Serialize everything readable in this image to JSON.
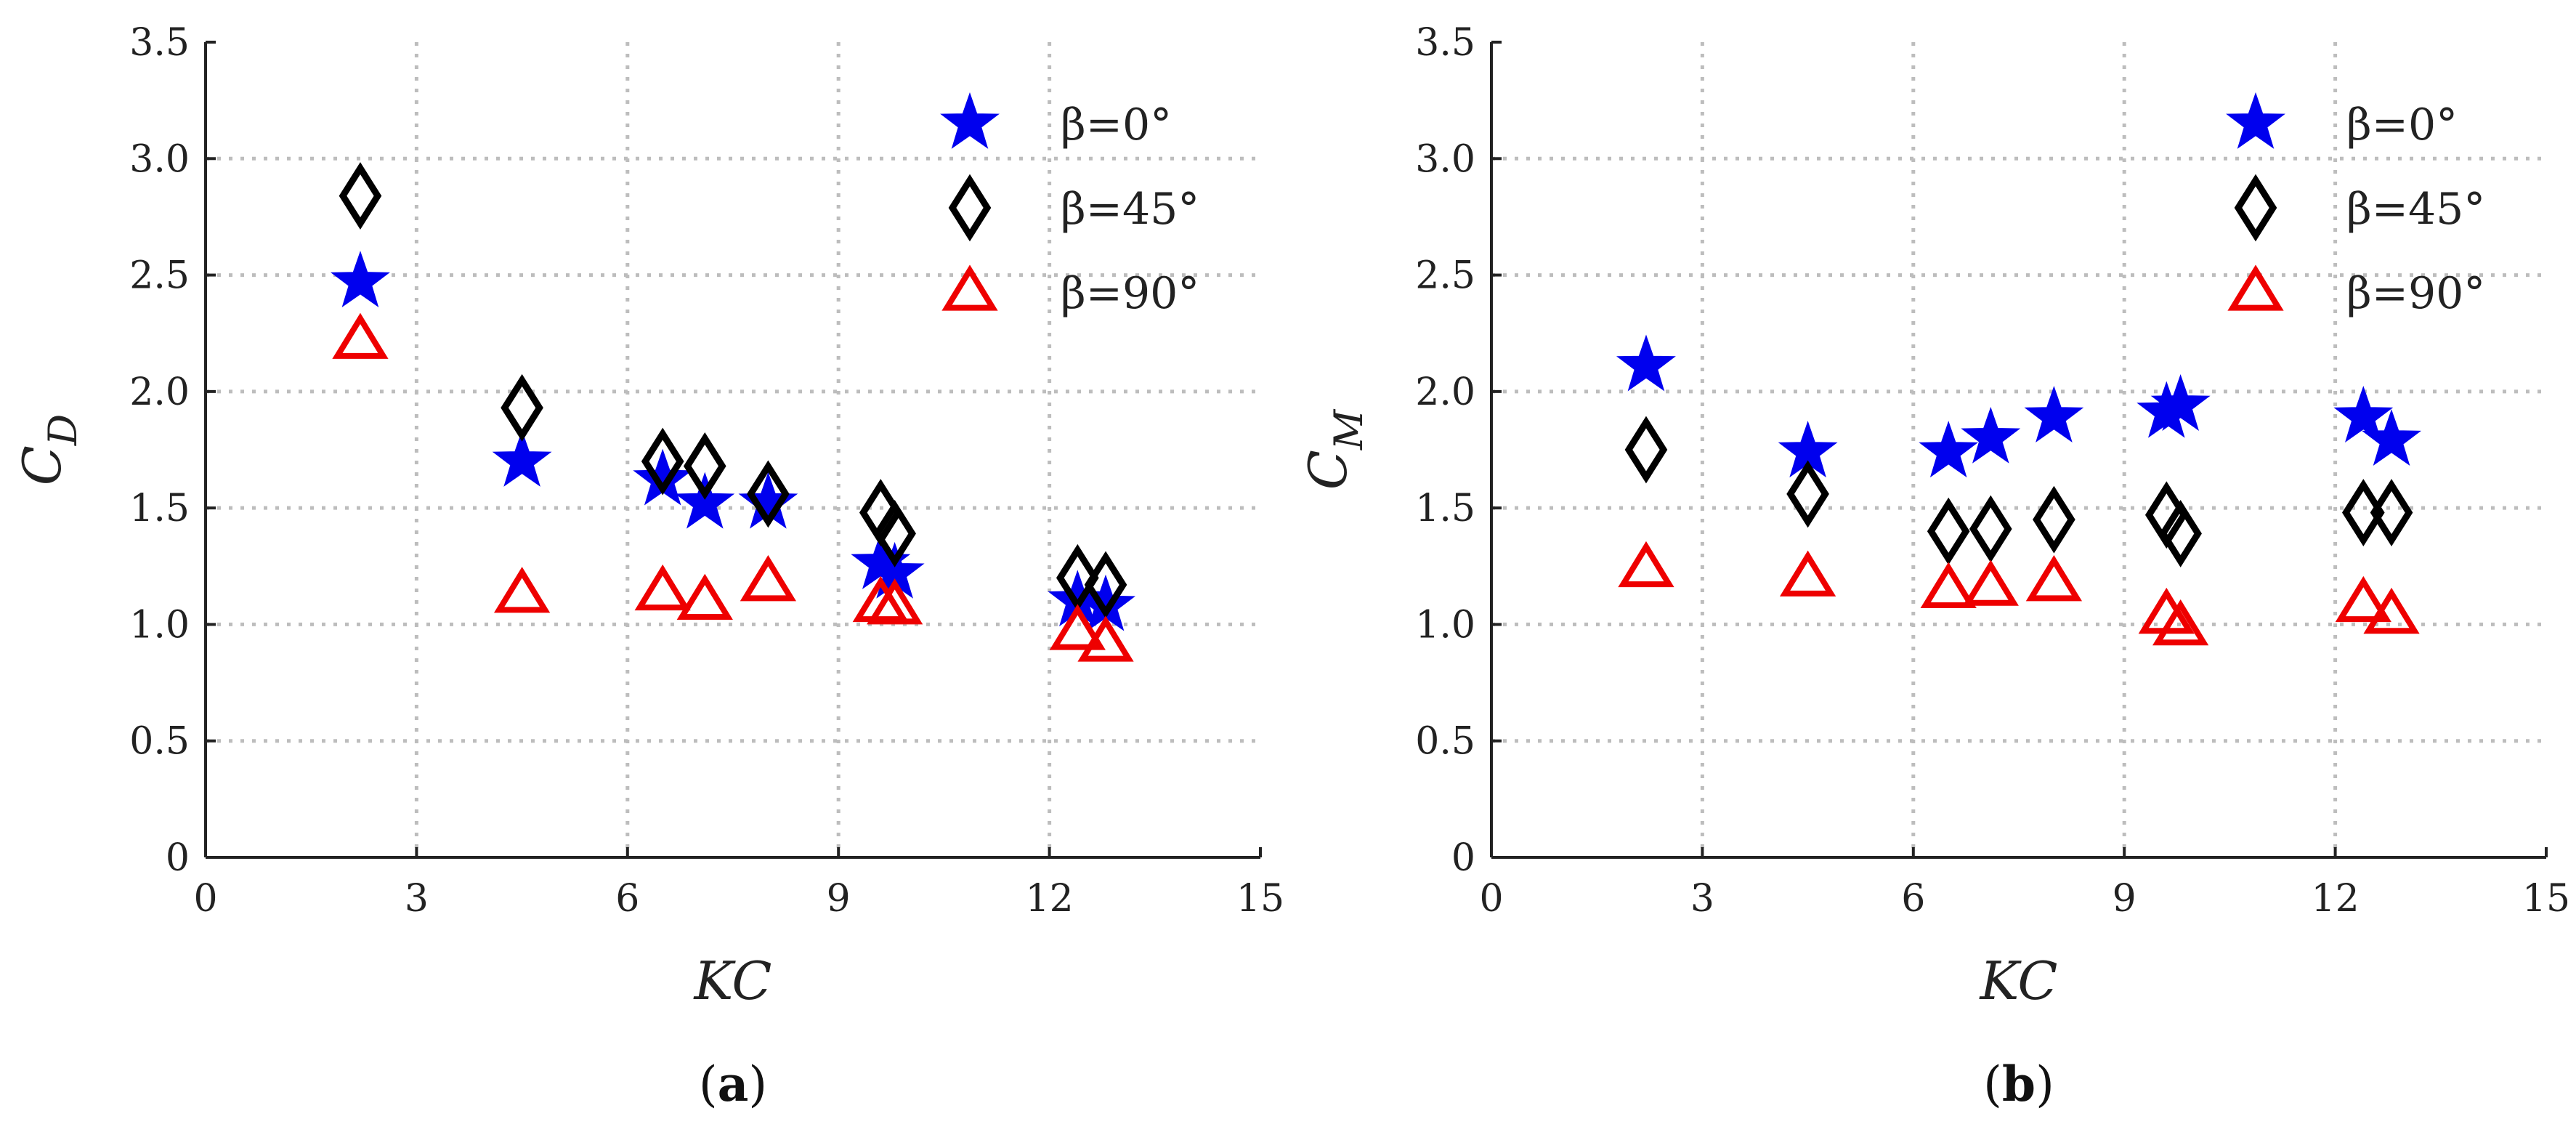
{
  "chart_data": [
    {
      "panel_caption": "a",
      "type": "scatter",
      "xlabel": "KC",
      "ylabel": {
        "base": "C",
        "sub": "D"
      },
      "xlim": [
        0,
        15
      ],
      "ylim": [
        0,
        3.5
      ],
      "xticks": [
        0,
        3,
        6,
        9,
        12,
        15
      ],
      "yticks": [
        0,
        0.5,
        1.0,
        1.5,
        2.0,
        2.5,
        3.0,
        3.5
      ],
      "xtick_labels": [
        "0",
        "3",
        "6",
        "9",
        "12",
        "15"
      ],
      "ytick_labels": [
        "0",
        "0.5",
        "1.0",
        "1.5",
        "2.0",
        "2.5",
        "3.0",
        "3.5"
      ],
      "grid": true,
      "legend_position": "top-right",
      "series": [
        {
          "name": "β=0°",
          "marker": "star",
          "color": "#0000ee",
          "x": [
            2.2,
            4.5,
            6.5,
            7.1,
            8.0,
            9.6,
            9.8,
            12.4,
            12.8
          ],
          "y": [
            2.47,
            1.7,
            1.62,
            1.52,
            1.52,
            1.26,
            1.22,
            1.1,
            1.08
          ]
        },
        {
          "name": "β=45°",
          "marker": "diamond",
          "color": "#000000",
          "x": [
            2.2,
            4.5,
            6.5,
            7.1,
            8.0,
            9.6,
            9.8,
            12.4,
            12.8
          ],
          "y": [
            2.84,
            1.93,
            1.7,
            1.68,
            1.56,
            1.48,
            1.39,
            1.2,
            1.17
          ]
        },
        {
          "name": "β=90°",
          "marker": "triangle",
          "color": "#ee0000",
          "x": [
            2.2,
            4.5,
            6.5,
            7.1,
            8.0,
            9.6,
            9.8,
            12.4,
            12.8
          ],
          "y": [
            2.22,
            1.13,
            1.14,
            1.1,
            1.18,
            1.09,
            1.08,
            0.97,
            0.92
          ]
        }
      ]
    },
    {
      "panel_caption": "b",
      "type": "scatter",
      "xlabel": "KC",
      "ylabel": {
        "base": "C",
        "sub": "M"
      },
      "xlim": [
        0,
        15
      ],
      "ylim": [
        0,
        3.5
      ],
      "xticks": [
        0,
        3,
        6,
        9,
        12,
        15
      ],
      "yticks": [
        0,
        0.5,
        1.0,
        1.5,
        2.0,
        2.5,
        3.0,
        3.5
      ],
      "xtick_labels": [
        "0",
        "3",
        "6",
        "9",
        "12",
        "15"
      ],
      "ytick_labels": [
        "0",
        "0.5",
        "1.0",
        "1.5",
        "2.0",
        "2.5",
        "3.0",
        "3.5"
      ],
      "grid": true,
      "legend_position": "top-right",
      "series": [
        {
          "name": "β=0°",
          "marker": "star",
          "color": "#0000ee",
          "x": [
            2.2,
            4.5,
            6.5,
            7.1,
            8.0,
            9.6,
            9.8,
            12.4,
            12.8
          ],
          "y": [
            2.11,
            1.74,
            1.74,
            1.8,
            1.89,
            1.91,
            1.94,
            1.89,
            1.79
          ]
        },
        {
          "name": "β=45°",
          "marker": "diamond",
          "color": "#000000",
          "x": [
            2.2,
            4.5,
            6.5,
            7.1,
            8.0,
            9.6,
            9.8,
            12.4,
            12.8
          ],
          "y": [
            1.75,
            1.56,
            1.4,
            1.41,
            1.45,
            1.47,
            1.39,
            1.48,
            1.48
          ]
        },
        {
          "name": "β=90°",
          "marker": "triangle",
          "color": "#ee0000",
          "x": [
            2.2,
            4.5,
            6.5,
            7.1,
            8.0,
            9.6,
            9.8,
            12.4,
            12.8
          ],
          "y": [
            1.24,
            1.2,
            1.15,
            1.16,
            1.18,
            1.04,
            0.99,
            1.09,
            1.04
          ]
        }
      ]
    }
  ]
}
